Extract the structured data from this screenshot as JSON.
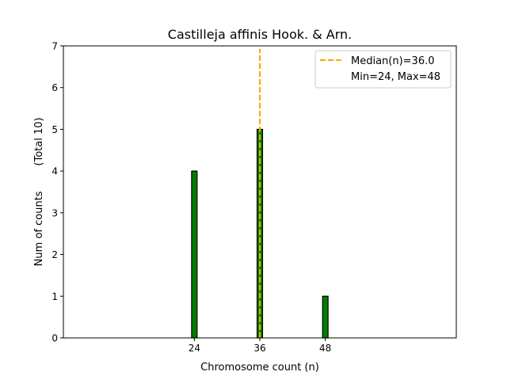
{
  "chart_data": {
    "type": "bar",
    "title": "Castilleja affinis Hook. & Arn.",
    "xlabel": "Chromosome count (n)",
    "ylabel": "Num of counts",
    "ylabel_secondary": "(Total 10)",
    "xlim": [
      0,
      72
    ],
    "ylim": [
      0,
      7
    ],
    "x_ticks": [
      24,
      36,
      48
    ],
    "x_tick_labels": [
      "24",
      "36",
      "48"
    ],
    "y_ticks": [
      0,
      1,
      2,
      3,
      4,
      5,
      6,
      7
    ],
    "y_tick_labels": [
      "0",
      "1",
      "2",
      "3",
      "4",
      "5",
      "6",
      "7"
    ],
    "x": [
      24,
      36,
      48
    ],
    "values": [
      4,
      5,
      1
    ],
    "bar_width": 1,
    "bar_color": "#008000",
    "median": 36.0,
    "median_color": "#FFA500",
    "grid": false,
    "legend": {
      "placement": "top-right",
      "entries": [
        "Median(n)=36.0",
        "Min=24, Max=48"
      ]
    }
  }
}
